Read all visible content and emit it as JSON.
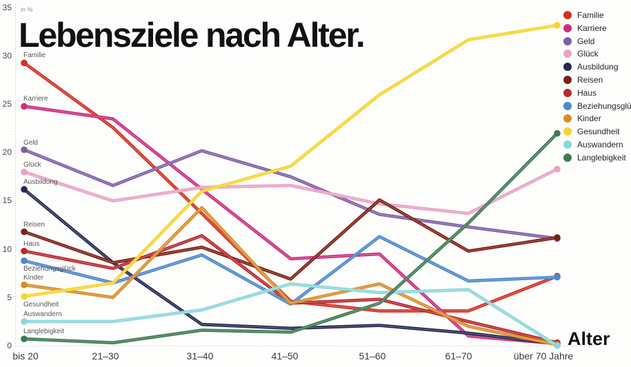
{
  "chart_data": {
    "type": "line",
    "title": "Lebensziele nach Alter.",
    "unit_label": "in %",
    "xlabel": "Alter",
    "categories": [
      "bis 20",
      "21–30",
      "31–40",
      "41–50",
      "51–60",
      "61–70",
      "über 70 Jahre"
    ],
    "y_ticks": [
      35,
      30,
      25,
      20,
      15,
      10,
      5,
      0
    ],
    "ylim": [
      0,
      35
    ],
    "grid": "none",
    "legend_position": "top-right",
    "marker_style": "dots-at-line-ends",
    "series": [
      {
        "name": "Familie",
        "color": "#d03123",
        "values": [
          29.3,
          22.6,
          13.7,
          4.6,
          3.6,
          3.6,
          7.2
        ]
      },
      {
        "name": "Karriere",
        "color": "#cd2c80",
        "values": [
          24.8,
          23.5,
          16.2,
          9.0,
          9.5,
          1.0,
          0.2
        ]
      },
      {
        "name": "Geld",
        "color": "#7e60a6",
        "values": [
          20.3,
          16.6,
          20.2,
          17.5,
          13.6,
          12.3,
          11.1
        ]
      },
      {
        "name": "Glück",
        "color": "#e9a2c5",
        "values": [
          18.0,
          15.0,
          16.4,
          16.6,
          14.7,
          13.7,
          18.3
        ]
      },
      {
        "name": "Ausbildung",
        "color": "#252a50",
        "values": [
          16.2,
          8.6,
          2.2,
          1.8,
          2.1,
          1.3,
          0.2
        ]
      },
      {
        "name": "Reisen",
        "color": "#7d2015",
        "values": [
          11.8,
          8.6,
          10.2,
          6.9,
          15.1,
          9.8,
          11.2
        ]
      },
      {
        "name": "Haus",
        "color": "#b9292f",
        "values": [
          9.8,
          8.0,
          11.4,
          4.4,
          4.8,
          2.5,
          0.3
        ]
      },
      {
        "name": "Beziehungsglück",
        "color": "#4d88cd",
        "values": [
          8.8,
          6.5,
          9.4,
          4.3,
          11.3,
          6.7,
          7.1
        ]
      },
      {
        "name": "Kinder",
        "color": "#d98d28",
        "values": [
          6.3,
          5.0,
          14.3,
          4.4,
          6.4,
          2.0,
          0.1
        ]
      },
      {
        "name": "Gesundheit",
        "color": "#f6d42f",
        "values": [
          5.1,
          6.5,
          16.0,
          18.6,
          26.0,
          31.7,
          33.2
        ]
      },
      {
        "name": "Auswandern",
        "color": "#8bd6de",
        "values": [
          2.5,
          2.5,
          3.7,
          6.4,
          5.5,
          5.8,
          0.0
        ]
      },
      {
        "name": "Langlebigkeit",
        "color": "#3e7a52",
        "values": [
          0.7,
          0.3,
          1.6,
          1.4,
          4.4,
          12.7,
          22.0
        ]
      }
    ]
  }
}
